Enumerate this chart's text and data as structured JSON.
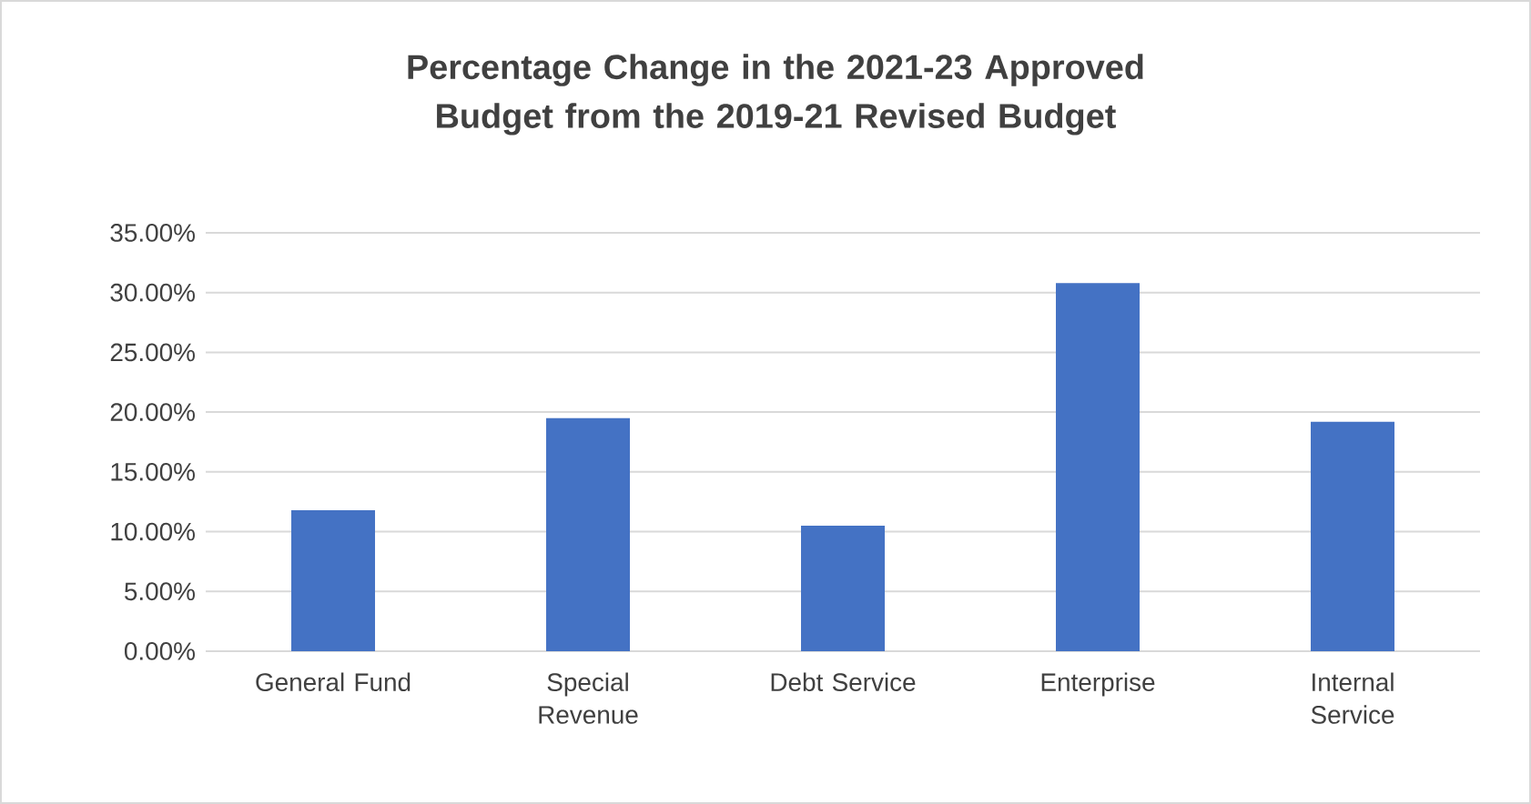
{
  "chart_data": {
    "type": "bar",
    "title": "Percentage Change in the 2021-23 Approved Budget from the 2019-21 Revised Budget",
    "categories": [
      "General Fund",
      "Special Revenue",
      "Debt Service",
      "Enterprise",
      "Internal Service"
    ],
    "values": [
      11.8,
      19.5,
      10.5,
      30.8,
      19.2
    ],
    "color": "#4472c4",
    "ylim": [
      0,
      35
    ],
    "yticks": [
      {
        "value": 0,
        "label": "0.00%"
      },
      {
        "value": 5,
        "label": "5.00%"
      },
      {
        "value": 10,
        "label": "10.00%"
      },
      {
        "value": 15,
        "label": "15.00%"
      },
      {
        "value": 20,
        "label": "20.00%"
      },
      {
        "value": 25,
        "label": "25.00%"
      },
      {
        "value": 30,
        "label": "30.00%"
      },
      {
        "value": 35,
        "label": "35.00%"
      }
    ],
    "grid": "y"
  }
}
